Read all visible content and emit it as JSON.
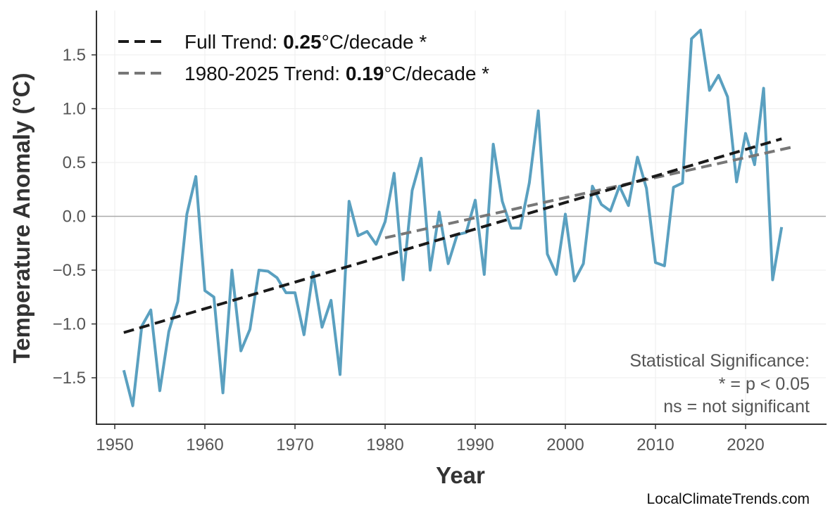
{
  "chart_data": {
    "type": "line",
    "xlabel": "Year",
    "ylabel": "Temperature Anomaly (°C)",
    "xlim": [
      1947,
      2029
    ],
    "ylim": [
      -1.93,
      1.87
    ],
    "xticks": [
      1950,
      1960,
      1970,
      1980,
      1990,
      2000,
      2010,
      2020
    ],
    "yticks": [
      -1.5,
      -1.0,
      -0.5,
      0.0,
      0.5,
      1.0,
      1.5
    ],
    "ytick_labels": [
      "−1.5",
      "−1.0",
      "−0.5",
      "0.0",
      "0.5",
      "1.0",
      "1.5"
    ],
    "grid": true,
    "zero_line": true,
    "legend_position": "top-left",
    "series": [
      {
        "color": "#5aa0c0",
        "x": [
          1951,
          1952,
          1953,
          1954,
          1955,
          1956,
          1957,
          1958,
          1959,
          1960,
          1961,
          1962,
          1963,
          1964,
          1965,
          1966,
          1967,
          1968,
          1969,
          1970,
          1971,
          1972,
          1973,
          1974,
          1975,
          1976,
          1977,
          1978,
          1979,
          1980,
          1981,
          1982,
          1983,
          1984,
          1985,
          1986,
          1987,
          1988,
          1989,
          1990,
          1991,
          1992,
          1993,
          1994,
          1995,
          1996,
          1997,
          1998,
          1999,
          2000,
          2001,
          2002,
          2003,
          2004,
          2005,
          2006,
          2007,
          2008,
          2009,
          2010,
          2011,
          2012,
          2013,
          2014,
          2015,
          2016,
          2017,
          2018,
          2019,
          2020,
          2021,
          2022,
          2023,
          2024
        ],
        "y": [
          -1.43,
          -1.76,
          -1.02,
          -0.87,
          -1.62,
          -1.07,
          -0.79,
          0.02,
          0.37,
          -0.69,
          -0.75,
          -1.64,
          -0.5,
          -1.25,
          -1.05,
          -0.5,
          -0.51,
          -0.57,
          -0.71,
          -0.71,
          -1.1,
          -0.52,
          -1.03,
          -0.78,
          -1.47,
          0.14,
          -0.18,
          -0.14,
          -0.26,
          -0.05,
          0.4,
          -0.59,
          0.24,
          0.54,
          -0.5,
          0.04,
          -0.44,
          -0.17,
          -0.15,
          0.15,
          -0.54,
          0.67,
          0.14,
          -0.11,
          -0.11,
          0.31,
          0.98,
          -0.35,
          -0.54,
          0.02,
          -0.6,
          -0.44,
          0.28,
          0.11,
          0.05,
          0.28,
          0.1,
          0.55,
          0.26,
          -0.43,
          -0.46,
          0.27,
          0.31,
          1.65,
          1.73,
          1.17,
          1.31,
          1.11,
          0.32,
          0.77,
          0.48,
          1.19,
          -0.59,
          -0.1
        ]
      }
    ],
    "trends": [
      {
        "label_prefix": "Full Trend: ",
        "value": "0.25",
        "label_suffix": "°C/decade *",
        "color": "#1a1a1a",
        "x": [
          1951,
          2024
        ],
        "y": [
          -1.08,
          0.72
        ]
      },
      {
        "label_prefix": "1980-2025 Trend: ",
        "value": "0.19",
        "label_suffix": "°C/decade *",
        "color": "#777777",
        "x": [
          1980,
          2025
        ],
        "y": [
          -0.2,
          0.64
        ]
      }
    ],
    "annotation": [
      "Statistical Significance:",
      "* = p < 0.05",
      "ns = not significant"
    ],
    "credit": "LocalClimateTrends.com"
  }
}
